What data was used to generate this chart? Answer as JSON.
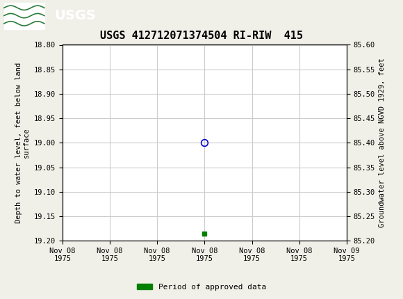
{
  "title": "USGS 412712071374504 RI-RIW  415",
  "header_color": "#2d7a3a",
  "ylabel_left": "Depth to water level, feet below land\nsurface",
  "ylabel_right": "Groundwater level above NGVD 1929, feet",
  "ylim_left_top": 18.8,
  "ylim_left_bottom": 19.2,
  "ylim_right_top": 85.6,
  "ylim_right_bottom": 85.2,
  "yticks_left": [
    18.8,
    18.85,
    18.9,
    18.95,
    19.0,
    19.05,
    19.1,
    19.15,
    19.2
  ],
  "yticks_right": [
    85.6,
    85.55,
    85.5,
    85.45,
    85.4,
    85.35,
    85.3,
    85.25,
    85.2
  ],
  "xlim": [
    0,
    6
  ],
  "xtick_labels": [
    "Nov 08\n1975",
    "Nov 08\n1975",
    "Nov 08\n1975",
    "Nov 08\n1975",
    "Nov 08\n1975",
    "Nov 08\n1975",
    "Nov 09\n1975"
  ],
  "xtick_positions": [
    0,
    1,
    2,
    3,
    4,
    5,
    6
  ],
  "data_point_x": 3,
  "data_point_y": 19.0,
  "data_point_color": "#0000cc",
  "green_square_x": 3,
  "green_square_y": 19.185,
  "green_square_color": "#008000",
  "legend_label": "Period of approved data",
  "legend_color": "#008000",
  "grid_color": "#cccccc",
  "bg_color": "#f0f0e8",
  "plot_bg_color": "#ffffff",
  "font_family": "monospace",
  "title_fontsize": 11,
  "tick_fontsize": 7.5,
  "ylabel_fontsize": 7.5
}
